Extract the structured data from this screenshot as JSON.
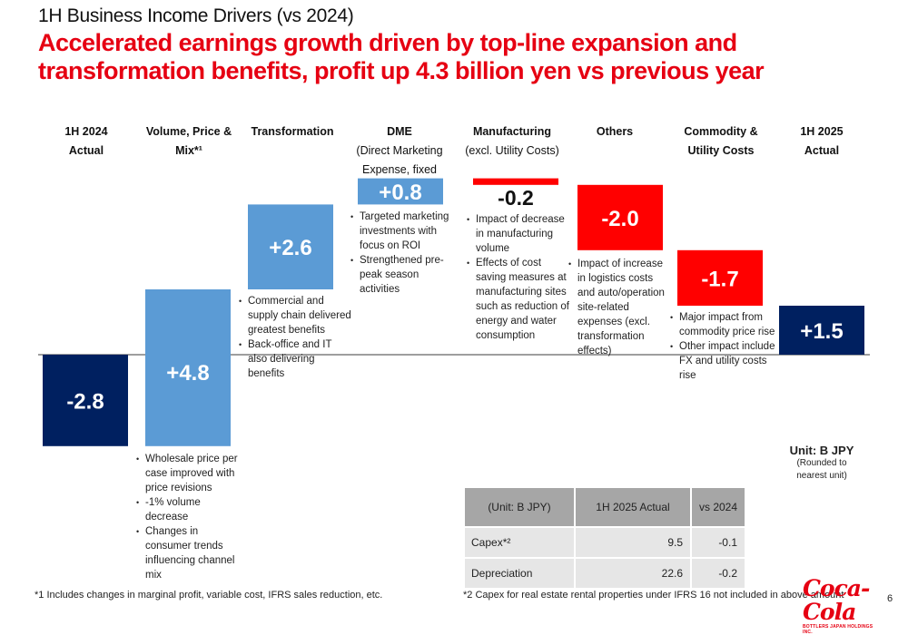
{
  "header": {
    "subtitle": "1H Business Income Drivers (vs 2024)",
    "headline": "Accelerated earnings growth driven by top-line expansion and transformation benefits, profit up 4.3 billion yen vs previous year"
  },
  "categories": [
    {
      "main": "1H 2024",
      "main2": "Actual",
      "sub": ""
    },
    {
      "main": "Volume, Price &",
      "main2": "Mix*¹",
      "sub": ""
    },
    {
      "main": "Transformation",
      "main2": "",
      "sub": ""
    },
    {
      "main": "DME",
      "main2": "",
      "sub": "(Direct Marketing Expense, fixed only)"
    },
    {
      "main": "Manufacturing",
      "main2": "",
      "sub": "(excl. Utility Costs)"
    },
    {
      "main": "Others",
      "main2": "",
      "sub": ""
    },
    {
      "main": "Commodity &",
      "main2": "Utility Costs",
      "sub": ""
    },
    {
      "main": "1H 2025",
      "main2": "Actual",
      "sub": ""
    }
  ],
  "notes": {
    "volume": [
      "Wholesale price per case improved with price revisions",
      "-1% volume decrease",
      "Changes in consumer trends influencing channel mix"
    ],
    "transformation": [
      "Commercial and supply chain delivered greatest benefits",
      "Back-office and IT also delivering benefits"
    ],
    "dme": [
      "Targeted marketing investments with focus on ROI",
      "Strengthened pre-peak season activities"
    ],
    "manufacturing": [
      "Impact of decrease in manufacturing volume",
      "Effects of cost saving measures at manufacturing sites such as reduction of energy and water consumption"
    ],
    "others": [
      "Impact of increase in logistics costs and auto/operation site-related expenses (excl. transformation effects)"
    ],
    "commodity": [
      "Major impact from commodity price rise",
      "Other impact include FX and utility costs rise"
    ]
  },
  "unit": {
    "label": "Unit: B JPY",
    "note": "(Rounded to nearest unit)"
  },
  "capex_table": {
    "headers": [
      "(Unit: B JPY)",
      "1H 2025 Actual",
      "vs 2024"
    ],
    "rows": [
      {
        "label": "Capex*²",
        "actual": "9.5",
        "vs": "-0.1"
      },
      {
        "label": "Depreciation",
        "actual": "22.6",
        "vs": "-0.2"
      }
    ]
  },
  "footnotes": {
    "f1": "*1 Includes changes in marginal profit, variable cost, IFRS sales reduction, etc.",
    "f2": "*2 Capex for real estate rental properties under IFRS 16 not included in above amount"
  },
  "logo": {
    "brand": "Coca-Cola",
    "tagline": "BOTTLERS JAPAN HOLDINGS INC."
  },
  "page_number": "6",
  "colors": {
    "total": "#002060",
    "increase": "#5b9bd5",
    "decrease": "#ff0000",
    "baseline": "#7f7f7f"
  },
  "chart_data": {
    "type": "bar",
    "subtype": "waterfall",
    "title": "1H Business Income Drivers (vs 2024)",
    "unit": "B JPY",
    "categories": [
      "1H 2024 Actual",
      "Volume, Price & Mix",
      "Transformation",
      "DME",
      "Manufacturing",
      "Others",
      "Commodity & Utility Costs",
      "1H 2025 Actual"
    ],
    "values": [
      -2.8,
      4.8,
      2.6,
      0.8,
      -0.2,
      -2.0,
      -1.7,
      1.5
    ],
    "labels": [
      "-2.8",
      "+4.8",
      "+2.6",
      "+0.8",
      "-0.2",
      "-2.0",
      "-1.7",
      "+1.5"
    ],
    "kinds": [
      "total",
      "delta",
      "delta",
      "delta",
      "delta",
      "delta",
      "delta",
      "total"
    ],
    "ylim": [
      -2.8,
      5.4
    ],
    "grid": false,
    "legend": "none"
  }
}
